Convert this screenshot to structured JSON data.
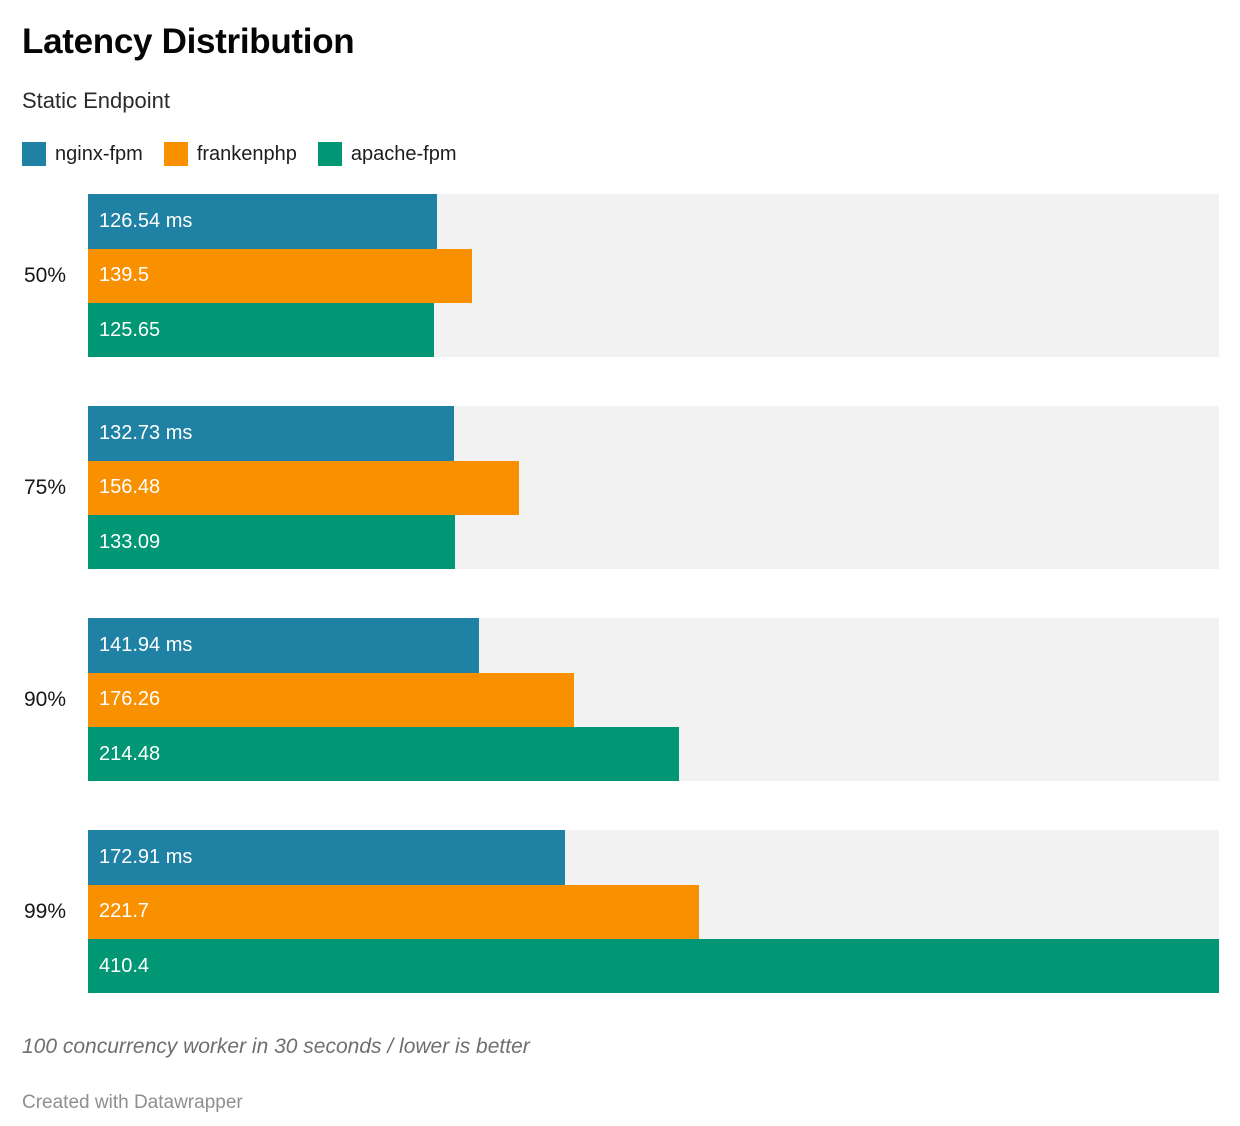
{
  "header": {
    "title": "Latency Distribution",
    "subtitle": "Static Endpoint"
  },
  "legend": [
    {
      "label": "nginx-fpm",
      "color": "#1f81a3"
    },
    {
      "label": "frankenphp",
      "color": "#f99000"
    },
    {
      "label": "apache-fpm",
      "color": "#019674"
    }
  ],
  "chart_data": {
    "type": "bar",
    "orientation": "horizontal",
    "title": "Latency Distribution",
    "subtitle": "Static Endpoint",
    "categories": [
      "50%",
      "75%",
      "90%",
      "99%"
    ],
    "series": [
      {
        "name": "nginx-fpm",
        "color": "#1f81a3",
        "values": [
          126.54,
          132.73,
          141.94,
          172.91
        ],
        "labels": [
          "126.54 ms",
          "132.73 ms",
          "141.94 ms",
          "172.91 ms"
        ]
      },
      {
        "name": "frankenphp",
        "color": "#f99000",
        "values": [
          139.5,
          156.48,
          176.26,
          221.7
        ],
        "labels": [
          "139.5",
          "156.48",
          "176.26",
          "221.7"
        ]
      },
      {
        "name": "apache-fpm",
        "color": "#019674",
        "values": [
          125.65,
          133.09,
          214.48,
          410.4
        ],
        "labels": [
          "125.65",
          "133.09",
          "214.48",
          "410.4"
        ]
      }
    ],
    "unit": "ms",
    "xlim": [
      0,
      410.4
    ],
    "grid": false,
    "legend_position": "top",
    "track_color": "#f2f2f2",
    "value_label_position": "inside-left",
    "note": "100 concurrency worker in 30 seconds / lower is better"
  },
  "footer": {
    "note": "100 concurrency worker in 30 seconds / lower is better",
    "attribution": "Created with Datawrapper"
  }
}
